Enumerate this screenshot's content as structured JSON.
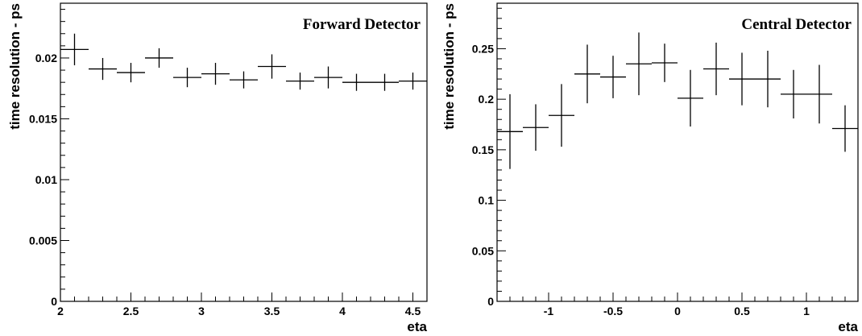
{
  "chart_data": [
    {
      "type": "scatter",
      "title": "Forward Detector",
      "xlabel": "eta",
      "ylabel": "time resolution - ps",
      "xlim": [
        2.0,
        4.6
      ],
      "ylim": [
        0,
        0.0245
      ],
      "xticks": [
        "2",
        "2.5",
        "3",
        "3.5",
        "4",
        "4.5"
      ],
      "yticks": [
        "0",
        "0.005",
        "0.01",
        "0.015",
        "0.02"
      ],
      "grid": false,
      "legend": "none",
      "points": [
        {
          "x": 2.1,
          "y": 0.0207,
          "xerr": 0.1,
          "yerr": 0.0013
        },
        {
          "x": 2.3,
          "y": 0.0191,
          "xerr": 0.1,
          "yerr": 0.0009
        },
        {
          "x": 2.5,
          "y": 0.0188,
          "xerr": 0.1,
          "yerr": 0.0008
        },
        {
          "x": 2.7,
          "y": 0.02,
          "xerr": 0.1,
          "yerr": 0.0008
        },
        {
          "x": 2.9,
          "y": 0.0184,
          "xerr": 0.1,
          "yerr": 0.0008
        },
        {
          "x": 3.1,
          "y": 0.0187,
          "xerr": 0.1,
          "yerr": 0.0009
        },
        {
          "x": 3.3,
          "y": 0.0182,
          "xerr": 0.1,
          "yerr": 0.0007
        },
        {
          "x": 3.5,
          "y": 0.0193,
          "xerr": 0.1,
          "yerr": 0.001
        },
        {
          "x": 3.7,
          "y": 0.0181,
          "xerr": 0.1,
          "yerr": 0.0007
        },
        {
          "x": 3.9,
          "y": 0.0184,
          "xerr": 0.1,
          "yerr": 0.0009
        },
        {
          "x": 4.1,
          "y": 0.018,
          "xerr": 0.1,
          "yerr": 0.0007
        },
        {
          "x": 4.3,
          "y": 0.018,
          "xerr": 0.1,
          "yerr": 0.0007
        },
        {
          "x": 4.5,
          "y": 0.0181,
          "xerr": 0.1,
          "yerr": 0.0007
        }
      ]
    },
    {
      "type": "scatter",
      "title": "Central Detector",
      "xlabel": "eta",
      "ylabel": "time resolution - ps",
      "xlim": [
        -1.4,
        1.4
      ],
      "ylim": [
        0,
        0.295
      ],
      "xticks": [
        "-1",
        "-0.5",
        "0",
        "0.5",
        "1"
      ],
      "yticks": [
        "0",
        "0.05",
        "0.1",
        "0.15",
        "0.2",
        "0.25"
      ],
      "grid": false,
      "legend": "none",
      "points": [
        {
          "x": -1.3,
          "y": 0.168,
          "xerr": 0.1,
          "yerr": 0.037
        },
        {
          "x": -1.1,
          "y": 0.172,
          "xerr": 0.1,
          "yerr": 0.023
        },
        {
          "x": -0.9,
          "y": 0.184,
          "xerr": 0.1,
          "yerr": 0.031
        },
        {
          "x": -0.7,
          "y": 0.225,
          "xerr": 0.1,
          "yerr": 0.029
        },
        {
          "x": -0.5,
          "y": 0.222,
          "xerr": 0.1,
          "yerr": 0.021
        },
        {
          "x": -0.3,
          "y": 0.235,
          "xerr": 0.1,
          "yerr": 0.031
        },
        {
          "x": -0.1,
          "y": 0.236,
          "xerr": 0.1,
          "yerr": 0.019
        },
        {
          "x": 0.1,
          "y": 0.201,
          "xerr": 0.1,
          "yerr": 0.028
        },
        {
          "x": 0.3,
          "y": 0.23,
          "xerr": 0.1,
          "yerr": 0.026
        },
        {
          "x": 0.5,
          "y": 0.22,
          "xerr": 0.1,
          "yerr": 0.026
        },
        {
          "x": 0.7,
          "y": 0.22,
          "xerr": 0.1,
          "yerr": 0.028
        },
        {
          "x": 0.9,
          "y": 0.205,
          "xerr": 0.1,
          "yerr": 0.024
        },
        {
          "x": 1.1,
          "y": 0.205,
          "xerr": 0.1,
          "yerr": 0.029
        },
        {
          "x": 1.3,
          "y": 0.171,
          "xerr": 0.1,
          "yerr": 0.023
        }
      ]
    }
  ]
}
